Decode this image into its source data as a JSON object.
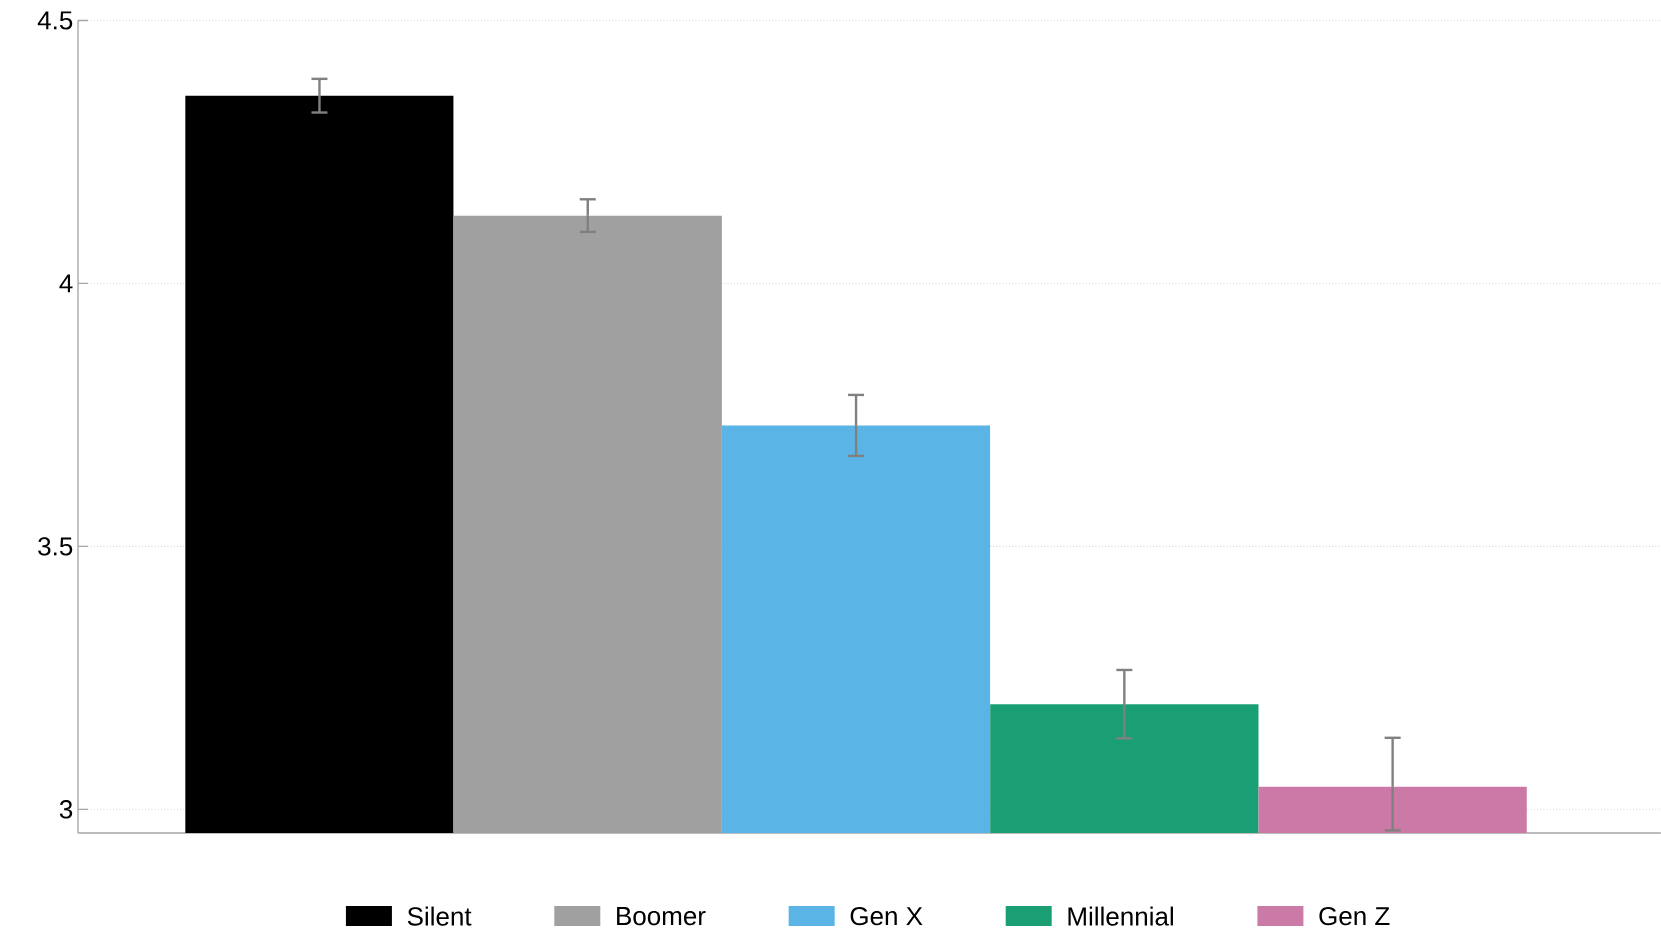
{
  "chart_data": {
    "type": "bar",
    "categories": [
      null,
      null,
      null,
      null,
      null
    ],
    "series": [
      {
        "name": "Silent",
        "color": "#000000",
        "values": [
          4.357,
          null,
          null,
          null,
          null
        ],
        "errors": [
          0.032,
          null,
          null,
          null,
          null
        ]
      },
      {
        "name": "Boomer",
        "color": "#a0a0a0",
        "values": [
          null,
          4.129,
          null,
          null,
          null
        ],
        "errors": [
          null,
          0.031,
          null,
          null,
          null
        ]
      },
      {
        "name": "Gen X",
        "color": "#5ab4e5",
        "values": [
          null,
          null,
          3.73,
          null,
          null
        ],
        "errors": [
          null,
          null,
          0.058,
          null,
          null
        ]
      },
      {
        "name": "Millennial",
        "color": "#1a9e74",
        "values": [
          null,
          null,
          null,
          3.2,
          null
        ],
        "errors": [
          null,
          null,
          null,
          0.065,
          null
        ]
      },
      {
        "name": "Gen Z",
        "color": "#cb79a7",
        "values": [
          null,
          null,
          null,
          null,
          3.043
        ],
        "errors": [
          null,
          null,
          null,
          null,
          [
            2.96,
            3.136
          ]
        ]
      }
    ],
    "ylim": [
      2.955,
      4.5
    ],
    "yticks": [
      3,
      3.5,
      4,
      4.5
    ],
    "grid": "y",
    "legend": "bottom"
  }
}
